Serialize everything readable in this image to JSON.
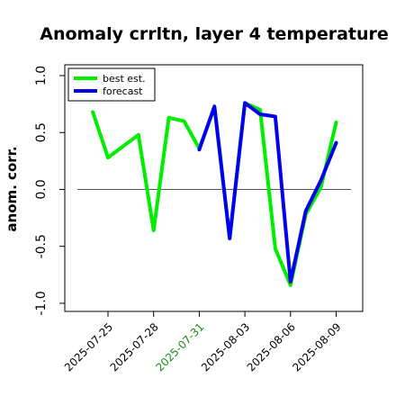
{
  "chart_data": {
    "type": "line",
    "title": "Anomaly crrltn, layer 4 temperature",
    "ylabel": "anom. corr.",
    "xlabel": "",
    "ylim": [
      -1.05,
      1.1
    ],
    "y_ticks": [
      "-1.0",
      "-0.5",
      "0.0",
      "0.5",
      "1.0"
    ],
    "x_ticks": [
      {
        "label": "2025-07-25",
        "color": "#000000"
      },
      {
        "label": "2025-07-28",
        "color": "#000000"
      },
      {
        "label": "2025-07-31",
        "color": "#1a8c1a"
      },
      {
        "label": "2025-08-03",
        "color": "#000000"
      },
      {
        "label": "2025-08-06",
        "color": "#000000"
      },
      {
        "label": "2025-08-09",
        "color": "#000000"
      }
    ],
    "reference_line": 0,
    "legend_position": "top-left",
    "series": [
      {
        "name": "best est.",
        "color": "#00ee00",
        "x": [
          "2025-07-24",
          "2025-07-25",
          "2025-07-27",
          "2025-07-28",
          "2025-07-29",
          "2025-07-30",
          "2025-07-31",
          "2025-08-01",
          "2025-08-02",
          "2025-08-03",
          "2025-08-04",
          "2025-08-05",
          "2025-08-06",
          "2025-08-07",
          "2025-08-08",
          "2025-08-09"
        ],
        "values": [
          0.68,
          0.28,
          0.48,
          -0.36,
          0.63,
          0.6,
          0.36,
          0.72,
          -0.43,
          0.76,
          0.7,
          -0.52,
          -0.84,
          -0.22,
          0.02,
          0.59
        ]
      },
      {
        "name": "forecast",
        "color": "#0000ee",
        "x": [
          "2025-07-31",
          "2025-08-01",
          "2025-08-02",
          "2025-08-03",
          "2025-08-04",
          "2025-08-05",
          "2025-08-06",
          "2025-08-07",
          "2025-08-08",
          "2025-08-09"
        ],
        "values": [
          0.35,
          0.73,
          -0.43,
          0.76,
          0.66,
          0.64,
          -0.81,
          -0.19,
          0.08,
          0.41
        ]
      }
    ]
  }
}
